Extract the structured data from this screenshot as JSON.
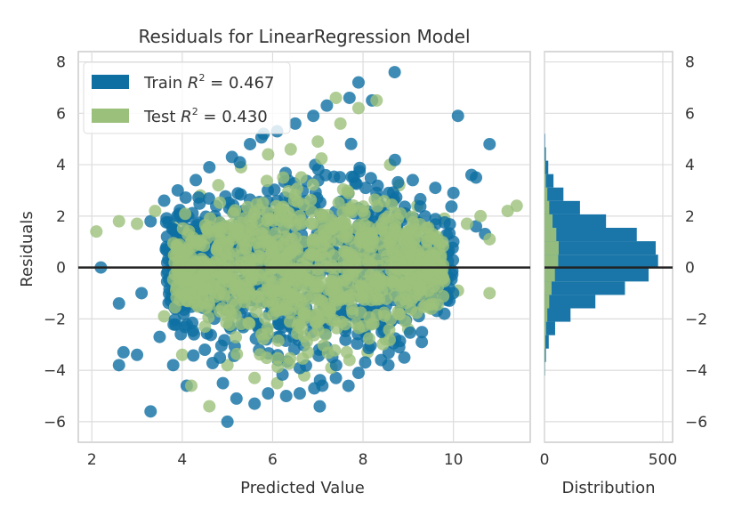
{
  "chart_data": [
    {
      "type": "scatter",
      "title": "Residuals for LinearRegression Model",
      "xlabel": "Predicted Value",
      "ylabel": "Residuals",
      "xlim": [
        1.7,
        11.7
      ],
      "ylim": [
        -6.8,
        8.4
      ],
      "xticks": [
        2,
        4,
        6,
        8,
        10
      ],
      "yticks": [
        -6,
        -4,
        -2,
        0,
        2,
        4,
        6,
        8
      ],
      "grid": true,
      "legend_position": "top-left",
      "reference_line_y": 0,
      "series": [
        {
          "name": "Train $R^2 = 0.467$",
          "color": "#0e6fa3",
          "points": [
            [
              2.2,
              0
            ],
            [
              2.6,
              -1.4
            ],
            [
              2.6,
              -3.8
            ],
            [
              2.7,
              -3.3
            ],
            [
              3.0,
              -3.4
            ],
            [
              3.1,
              -1.0
            ],
            [
              3.3,
              -5.6
            ],
            [
              3.3,
              1.8
            ],
            [
              3.5,
              -2.7
            ],
            [
              3.6,
              2.6
            ],
            [
              3.8,
              -3.8
            ],
            [
              3.9,
              3.0
            ],
            [
              4.1,
              -4.6
            ],
            [
              4.3,
              3.4
            ],
            [
              4.5,
              -3.2
            ],
            [
              4.6,
              3.9
            ],
            [
              4.9,
              -4.5
            ],
            [
              5.0,
              -6.0
            ],
            [
              5.1,
              4.3
            ],
            [
              5.2,
              -5.1
            ],
            [
              5.5,
              4.8
            ],
            [
              5.6,
              -5.3
            ],
            [
              5.8,
              5.2
            ],
            [
              5.9,
              -4.9
            ],
            [
              6.1,
              5.3
            ],
            [
              6.3,
              -5.0
            ],
            [
              6.5,
              5.6
            ],
            [
              6.6,
              -4.9
            ],
            [
              6.9,
              5.9
            ],
            [
              7.1,
              -4.6
            ],
            [
              7.2,
              6.3
            ],
            [
              7.4,
              -4.3
            ],
            [
              7.7,
              6.6
            ],
            [
              7.9,
              -4.1
            ],
            [
              7.9,
              7.2
            ],
            [
              8.2,
              6.5
            ],
            [
              8.4,
              -3.6
            ],
            [
              8.7,
              7.6
            ],
            [
              8.8,
              -3.1
            ],
            [
              9.1,
              3.4
            ],
            [
              9.3,
              -2.9
            ],
            [
              9.6,
              3.1
            ],
            [
              9.8,
              -1.8
            ],
            [
              10.0,
              2.9
            ],
            [
              10.1,
              5.9
            ],
            [
              10.4,
              3.6
            ],
            [
              10.5,
              1.6
            ],
            [
              10.5,
              3.5
            ],
            [
              10.8,
              4.8
            ],
            [
              10.7,
              1.3
            ]
          ],
          "residual_distribution_counts": [
            2,
            6,
            18,
            45,
            110,
            215,
            340,
            440,
            480,
            470,
            390,
            260,
            150,
            80,
            38,
            16,
            6,
            2
          ]
        },
        {
          "name": "Test $R^2 = 0.430$",
          "color": "#9bc07b",
          "points": [
            [
              2.1,
              1.4
            ],
            [
              2.6,
              1.8
            ],
            [
              3.0,
              1.7
            ],
            [
              3.4,
              2.2
            ],
            [
              3.6,
              -1.9
            ],
            [
              3.8,
              1.6
            ],
            [
              4.0,
              -3.4
            ],
            [
              4.2,
              -4.6
            ],
            [
              4.4,
              2.8
            ],
            [
              4.6,
              -5.4
            ],
            [
              4.8,
              3.2
            ],
            [
              5.0,
              -3.8
            ],
            [
              5.3,
              3.9
            ],
            [
              5.6,
              -4.3
            ],
            [
              5.9,
              4.4
            ],
            [
              6.1,
              -4.5
            ],
            [
              6.4,
              4.6
            ],
            [
              6.7,
              -4.2
            ],
            [
              7.0,
              4.9
            ],
            [
              7.3,
              -3.9
            ],
            [
              7.5,
              5.6
            ],
            [
              7.7,
              -3.6
            ],
            [
              7.9,
              6.2
            ],
            [
              8.1,
              -3.3
            ],
            [
              8.3,
              6.5
            ],
            [
              8.5,
              -2.8
            ],
            [
              8.6,
              4.0
            ],
            [
              8.8,
              3.2
            ],
            [
              9.0,
              -2.4
            ],
            [
              9.2,
              2.4
            ],
            [
              9.5,
              -1.6
            ],
            [
              9.8,
              1.9
            ],
            [
              10.1,
              -0.9
            ],
            [
              10.3,
              1.7
            ],
            [
              10.6,
              2.0
            ],
            [
              10.8,
              -1.0
            ],
            [
              11.2,
              2.2
            ],
            [
              11.4,
              2.4
            ],
            [
              10.8,
              1.1
            ],
            [
              7.4,
              6.6
            ]
          ],
          "residual_distribution_counts": [
            1,
            2,
            4,
            7,
            12,
            20,
            30,
            44,
            58,
            60,
            50,
            34,
            20,
            12,
            6,
            3,
            1,
            0
          ]
        }
      ]
    },
    {
      "type": "bar",
      "orientation": "horizontal",
      "xlabel": "Distribution",
      "xlim": [
        0,
        500
      ],
      "xticks": [
        0,
        500
      ],
      "bin_range": [
        -4.2,
        5.2
      ],
      "ylim": [
        -6.8,
        8.4
      ],
      "yticks": [
        -6,
        -4,
        -2,
        0,
        2,
        4,
        6,
        8
      ],
      "grid": true
    }
  ]
}
